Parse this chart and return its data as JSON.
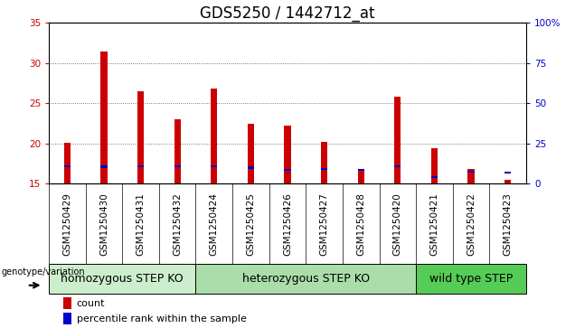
{
  "title": "GDS5250 / 1442712_at",
  "samples": [
    "GSM1250429",
    "GSM1250430",
    "GSM1250431",
    "GSM1250432",
    "GSM1250424",
    "GSM1250425",
    "GSM1250426",
    "GSM1250427",
    "GSM1250428",
    "GSM1250420",
    "GSM1250421",
    "GSM1250422",
    "GSM1250423"
  ],
  "count_values": [
    20.1,
    31.5,
    26.5,
    23.0,
    26.8,
    22.5,
    22.2,
    20.2,
    16.8,
    25.8,
    19.4,
    16.8,
    15.5
  ],
  "percentile_values": [
    17.2,
    17.1,
    17.2,
    17.2,
    17.2,
    17.0,
    16.7,
    16.8,
    16.7,
    17.2,
    15.8,
    16.5,
    16.4
  ],
  "ylim": [
    15,
    35
  ],
  "y2lim": [
    0,
    100
  ],
  "yticks": [
    15,
    20,
    25,
    30,
    35
  ],
  "y2ticks": [
    0,
    25,
    50,
    75,
    100
  ],
  "groups": [
    {
      "label": "homozygous STEP KO",
      "start": 0,
      "end": 3,
      "color": "#cceecc"
    },
    {
      "label": "heterozygous STEP KO",
      "start": 4,
      "end": 9,
      "color": "#aaddaa"
    },
    {
      "label": "wild type STEP",
      "start": 10,
      "end": 12,
      "color": "#55cc55"
    }
  ],
  "bar_color": "#cc0000",
  "percentile_color": "#0000cc",
  "bar_width": 0.18,
  "xaxis_bg": "#d8d8d8",
  "plot_bg": "#ffffff",
  "grid_color": "#555555",
  "title_fontsize": 12,
  "tick_fontsize": 7.5,
  "label_fontsize": 8,
  "group_label_fontsize": 9
}
